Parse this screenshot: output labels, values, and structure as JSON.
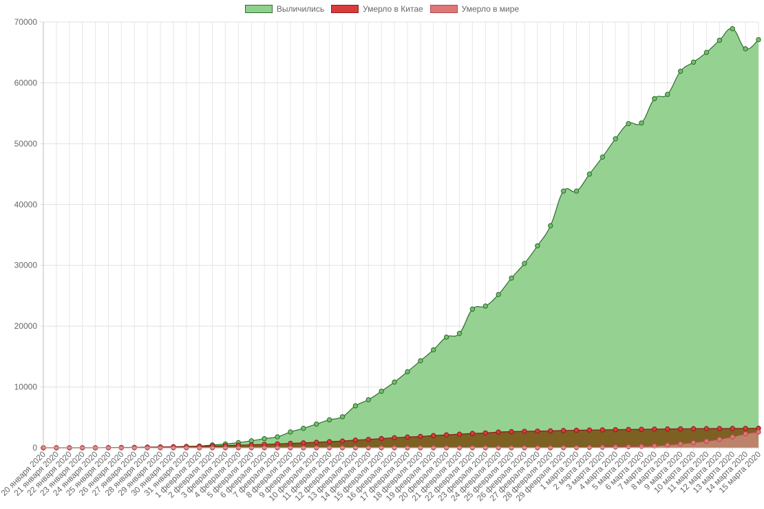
{
  "chart_data": {
    "type": "line",
    "title": "",
    "legend_position": "top-center",
    "grid": true,
    "ylim": [
      0,
      70000
    ],
    "yticks": [
      0,
      10000,
      20000,
      30000,
      40000,
      50000,
      60000,
      70000
    ],
    "categories": [
      "20 января 2020",
      "21 января 2020",
      "22 января 2020",
      "23 января 2020",
      "24 января 2020",
      "25 января 2020",
      "26 января 2020",
      "27 января 2020",
      "28 января 2020",
      "29 января 2020",
      "30 января 2020",
      "31 января 2020",
      "1 февраля 2020",
      "2 февраля 2020",
      "3 февраля 2020",
      "4 февраля 2020",
      "5 февраля 2020",
      "6 февраля 2020",
      "7 февраля 2020",
      "8 февраля 2020",
      "9 февраля 2020",
      "10 февраля 2020",
      "11 февраля 2020",
      "12 февраля 2020",
      "13 февраля 2020",
      "14 февраля 2020",
      "15 февраля 2020",
      "16 февраля 2020",
      "17 февраля 2020",
      "18 февраля 2020",
      "19 февраля 2020",
      "20 февраля 2020",
      "21 февраля 2020",
      "22 февраля 2020",
      "23 февраля 2020",
      "24 февраля 2020",
      "25 февраля 2020",
      "26 февраля 2020",
      "27 февраля 2020",
      "28 февраля 2020",
      "29 февраля 2020",
      "1 марта 2020",
      "2 марта 2020",
      "3 марта 2020",
      "4 марта 2020",
      "5 марта 2020",
      "6 марта 2020",
      "7 марта 2020",
      "8 марта 2020",
      "9 марта 2020",
      "10 марта 2020",
      "11 марта 2020",
      "12 марта 2020",
      "13 марта 2020",
      "14 марта 2020",
      "15 марта 2020"
    ],
    "series": [
      {
        "name": "Выличились",
        "fill": "#8fd08c",
        "stroke": "#2f6b2c",
        "point": "#6fc06b",
        "values": [
          0,
          0,
          0,
          0,
          0,
          30,
          50,
          60,
          100,
          120,
          150,
          220,
          280,
          470,
          630,
          850,
          1150,
          1500,
          1800,
          2600,
          3200,
          3900,
          4600,
          5100,
          6900,
          7900,
          9300,
          10800,
          12500,
          14300,
          16100,
          18200,
          18800,
          22800,
          23300,
          25200,
          27900,
          30300,
          33200,
          36500,
          42200,
          42200,
          45000,
          47800,
          50800,
          53300,
          53400,
          57400,
          58100,
          61900,
          63400,
          65000,
          67000,
          68900,
          65600,
          67100
        ]
      },
      {
        "name": "Умерло в Китае",
        "fill": "#7a5b1e",
        "stroke": "#8b1a1a",
        "point": "#d93b3b",
        "values": [
          0,
          0,
          0,
          0,
          0,
          20,
          40,
          60,
          100,
          130,
          170,
          210,
          260,
          300,
          360,
          430,
          490,
          560,
          640,
          720,
          810,
          910,
          1010,
          1110,
          1260,
          1380,
          1520,
          1660,
          1770,
          1870,
          2010,
          2120,
          2240,
          2360,
          2440,
          2590,
          2660,
          2710,
          2740,
          2790,
          2840,
          2880,
          2920,
          2950,
          2980,
          3010,
          3040,
          3070,
          3100,
          3120,
          3140,
          3160,
          3170,
          3180,
          3190,
          3210
        ]
      },
      {
        "name": "Умерло в мире",
        "fill": "#e89a9a",
        "stroke": "#b24a4a",
        "point": "#e07777",
        "values": [
          0,
          0,
          0,
          0,
          0,
          0,
          0,
          0,
          0,
          0,
          0,
          0,
          0,
          0,
          0,
          0,
          0,
          0,
          0,
          0,
          0,
          0,
          0,
          0,
          0,
          0,
          0,
          0,
          0,
          0,
          0,
          0,
          0,
          0,
          0,
          0,
          0,
          0,
          0,
          0,
          20,
          40,
          70,
          100,
          140,
          180,
          230,
          300,
          450,
          650,
          850,
          1100,
          1400,
          1800,
          2300,
          2600
        ]
      }
    ]
  }
}
